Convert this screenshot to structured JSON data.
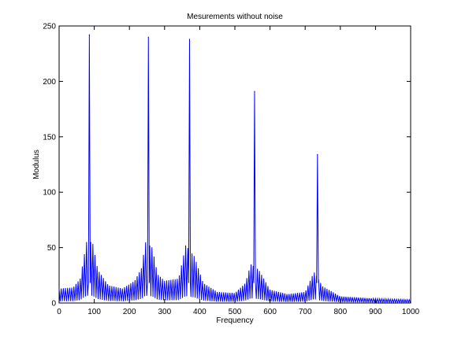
{
  "chart_data": {
    "type": "line",
    "title": "Mesurements without noise",
    "xlabel": "Frequency",
    "ylabel": "Modulus",
    "xlim": [
      0,
      1000
    ],
    "ylim": [
      0,
      250
    ],
    "x_ticks": [
      0,
      100,
      200,
      300,
      400,
      500,
      600,
      700,
      800,
      900,
      1000
    ],
    "y_ticks": [
      0,
      50,
      100,
      150,
      200,
      250
    ],
    "grid": false,
    "line_color": "#0000ff",
    "series": [
      {
        "peaks": [
          {
            "x": 86,
            "y": 242
          },
          {
            "x": 254,
            "y": 240
          },
          {
            "x": 371,
            "y": 238
          },
          {
            "x": 556,
            "y": 191
          },
          {
            "x": 735,
            "y": 134
          }
        ],
        "envelope": [
          {
            "x": 0,
            "y": 13
          },
          {
            "x": 40,
            "y": 14
          },
          {
            "x": 60,
            "y": 22
          },
          {
            "x": 78,
            "y": 55
          },
          {
            "x": 95,
            "y": 55
          },
          {
            "x": 110,
            "y": 30
          },
          {
            "x": 140,
            "y": 16
          },
          {
            "x": 180,
            "y": 13
          },
          {
            "x": 215,
            "y": 20
          },
          {
            "x": 235,
            "y": 32
          },
          {
            "x": 245,
            "y": 55
          },
          {
            "x": 265,
            "y": 50
          },
          {
            "x": 280,
            "y": 26
          },
          {
            "x": 300,
            "y": 20
          },
          {
            "x": 340,
            "y": 22
          },
          {
            "x": 360,
            "y": 52
          },
          {
            "x": 385,
            "y": 42
          },
          {
            "x": 410,
            "y": 18
          },
          {
            "x": 450,
            "y": 10
          },
          {
            "x": 500,
            "y": 9
          },
          {
            "x": 530,
            "y": 18
          },
          {
            "x": 545,
            "y": 35
          },
          {
            "x": 568,
            "y": 30
          },
          {
            "x": 600,
            "y": 12
          },
          {
            "x": 650,
            "y": 8
          },
          {
            "x": 700,
            "y": 10
          },
          {
            "x": 725,
            "y": 28
          },
          {
            "x": 750,
            "y": 15
          },
          {
            "x": 800,
            "y": 6
          },
          {
            "x": 900,
            "y": 4
          },
          {
            "x": 1000,
            "y": 3
          }
        ],
        "ripple_spacing": 6
      }
    ]
  }
}
